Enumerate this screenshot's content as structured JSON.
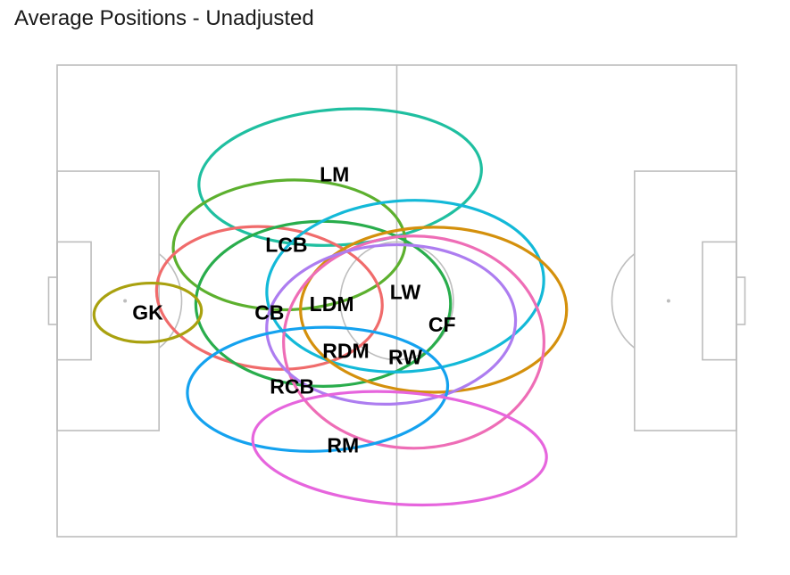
{
  "chart_data": {
    "type": "scatter",
    "title": "Average Positions - Unadjusted",
    "xlim": [
      0,
      120
    ],
    "ylim": [
      0,
      80
    ],
    "pitch_lines_color": "#bdbdbd",
    "series": [
      {
        "name": "LM",
        "color": "#1fbfa0",
        "x": 50.0,
        "y": 61.0,
        "rx": 25.0,
        "ry": 11.5,
        "angle": -4
      },
      {
        "name": "LCB",
        "color": "#5cb02e",
        "x": 41.0,
        "y": 49.5,
        "rx": 20.5,
        "ry": 11.0,
        "angle": -2
      },
      {
        "name": "CB",
        "color": "#f06b6b",
        "x": 37.5,
        "y": 40.5,
        "rx": 20.0,
        "ry": 12.0,
        "angle": 6
      },
      {
        "name": "LDM",
        "color": "#29ad4c",
        "x": 47.0,
        "y": 39.5,
        "rx": 22.5,
        "ry": 14.0,
        "angle": 0
      },
      {
        "name": "LW",
        "color": "#13b9d8",
        "x": 61.5,
        "y": 42.5,
        "rx": 24.5,
        "ry": 14.5,
        "angle": -4
      },
      {
        "name": "CF",
        "color": "#d4900c",
        "x": 66.5,
        "y": 38.5,
        "rx": 23.5,
        "ry": 14.0,
        "angle": 0
      },
      {
        "name": "RW",
        "color": "#ee6db6",
        "x": 63.0,
        "y": 33.0,
        "rx": 23.0,
        "ry": 18.0,
        "angle": 0
      },
      {
        "name": "RDM",
        "color": "#ad7df0",
        "x": 59.0,
        "y": 36.0,
        "rx": 22.0,
        "ry": 13.5,
        "angle": -3
      },
      {
        "name": "RCB",
        "color": "#14a2ef",
        "x": 46.0,
        "y": 25.0,
        "rx": 23.0,
        "ry": 10.5,
        "angle": -2
      },
      {
        "name": "RM",
        "color": "#e665dd",
        "x": 60.5,
        "y": 15.0,
        "rx": 26.0,
        "ry": 9.5,
        "angle": 4
      },
      {
        "name": "GK",
        "color": "#a9a10f",
        "x": 16.0,
        "y": 38.0,
        "rx": 9.5,
        "ry": 5.0,
        "angle": -3
      }
    ],
    "labels": [
      {
        "name": "LM",
        "x": 49.0,
        "y": 61.5
      },
      {
        "name": "LCB",
        "x": 40.5,
        "y": 49.5
      },
      {
        "name": "LW",
        "x": 61.5,
        "y": 41.5
      },
      {
        "name": "LDM",
        "x": 48.5,
        "y": 39.5
      },
      {
        "name": "GK",
        "x": 16.0,
        "y": 38.0
      },
      {
        "name": "CB",
        "x": 37.5,
        "y": 38.0
      },
      {
        "name": "CF",
        "x": 68.0,
        "y": 36.0
      },
      {
        "name": "RDM",
        "x": 51.0,
        "y": 31.5
      },
      {
        "name": "RW",
        "x": 61.5,
        "y": 30.5
      },
      {
        "name": "RCB",
        "x": 41.5,
        "y": 25.5
      },
      {
        "name": "RM",
        "x": 50.5,
        "y": 15.5
      }
    ]
  }
}
